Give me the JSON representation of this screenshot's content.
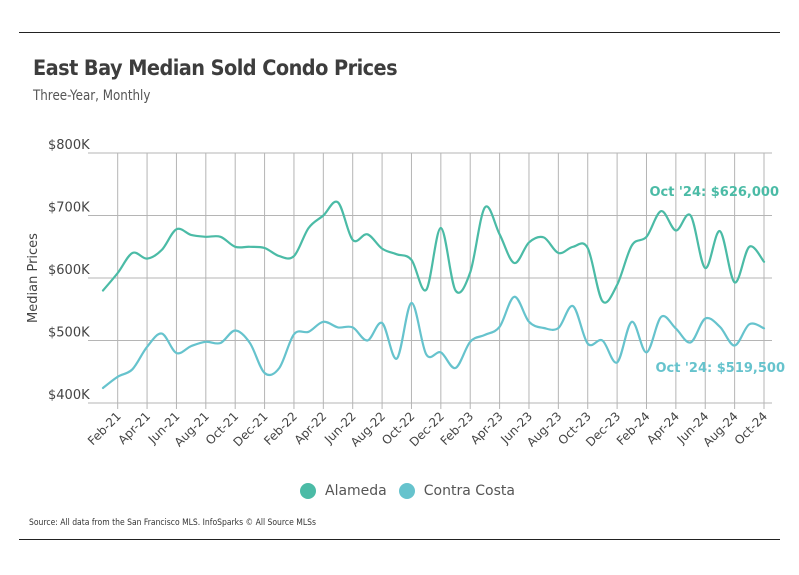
{
  "header": {
    "title": "East Bay Median Sold Condo Prices",
    "subtitle": "Three-Year, Monthly"
  },
  "footer": {
    "source": "Source:  All data from the San Francisco MLS. InfoSparks © All Source MLSs"
  },
  "colors": {
    "alameda": "#4bbba6",
    "contra_costa": "#66c3cd",
    "grid": "#b5b5b5"
  },
  "chart_data": {
    "type": "line",
    "title": "East Bay Median Sold Condo Prices",
    "subtitle": "Three-Year, Monthly",
    "xlabel": "",
    "ylabel": "Median Prices",
    "ylim": [
      400000,
      800000
    ],
    "yticks": [
      800000,
      700000,
      600000,
      500000,
      400000
    ],
    "ytick_labels": [
      "$800K",
      "$700K",
      "$600K",
      "$500K",
      "$400K"
    ],
    "grid": true,
    "legend_position": "bottom",
    "x": [
      "Jan-21",
      "Feb-21",
      "Mar-21",
      "Apr-21",
      "May-21",
      "Jun-21",
      "Jul-21",
      "Aug-21",
      "Sep-21",
      "Oct-21",
      "Nov-21",
      "Dec-21",
      "Jan-22",
      "Feb-22",
      "Mar-22",
      "Apr-22",
      "May-22",
      "Jun-22",
      "Jul-22",
      "Aug-22",
      "Sep-22",
      "Oct-22",
      "Nov-22",
      "Dec-22",
      "Jan-23",
      "Feb-23",
      "Mar-23",
      "Apr-23",
      "May-23",
      "Jun-23",
      "Jul-23",
      "Aug-23",
      "Sep-23",
      "Oct-23",
      "Nov-23",
      "Dec-23",
      "Jan-24",
      "Feb-24",
      "Mar-24",
      "Apr-24",
      "May-24",
      "Jun-24",
      "Jul-24",
      "Aug-24",
      "Sep-24",
      "Oct-24"
    ],
    "xtick_labels": [
      "Feb-21",
      "Apr-21",
      "Jun-21",
      "Aug-21",
      "Oct-21",
      "Dec-21",
      "Feb-22",
      "Apr-22",
      "Jun-22",
      "Aug-22",
      "Oct-22",
      "Dec-22",
      "Feb-23",
      "Apr-23",
      "Jun-23",
      "Aug-23",
      "Oct-23",
      "Dec-23",
      "Feb-24",
      "Apr-24",
      "Jun-24",
      "Aug-24",
      "Oct-24"
    ],
    "series": [
      {
        "name": "Alameda",
        "color": "#4bbba6",
        "values": [
          580000,
          608000,
          640000,
          631000,
          645000,
          678000,
          669000,
          666000,
          666000,
          650000,
          650000,
          648000,
          635000,
          635000,
          680000,
          700000,
          721000,
          661000,
          670000,
          647000,
          638000,
          629000,
          581000,
          680000,
          580000,
          609000,
          713000,
          670000,
          624000,
          657000,
          665000,
          640000,
          650000,
          648000,
          563000,
          589000,
          652000,
          666000,
          707000,
          676000,
          700000,
          616000,
          675000,
          593000,
          650000,
          626000
        ]
      },
      {
        "name": "Contra Costa",
        "color": "#66c3cd",
        "values": [
          424000,
          442000,
          454000,
          490000,
          511000,
          480000,
          491000,
          498000,
          496000,
          516000,
          496000,
          448000,
          456000,
          510000,
          514000,
          530000,
          521000,
          521000,
          500000,
          528000,
          471000,
          560000,
          478000,
          481000,
          456000,
          498000,
          509000,
          522000,
          570000,
          530000,
          520000,
          520000,
          555000,
          495000,
          500000,
          465000,
          530000,
          481000,
          538000,
          519000,
          497000,
          535000,
          522000,
          492000,
          526000,
          519500
        ]
      }
    ],
    "annotations": [
      {
        "series": "Alameda",
        "text": "Oct '24: $626,000"
      },
      {
        "series": "Contra Costa",
        "text": "Oct '24: $519,500"
      }
    ]
  },
  "legend": [
    {
      "label": "Alameda"
    },
    {
      "label": "Contra Costa"
    }
  ]
}
